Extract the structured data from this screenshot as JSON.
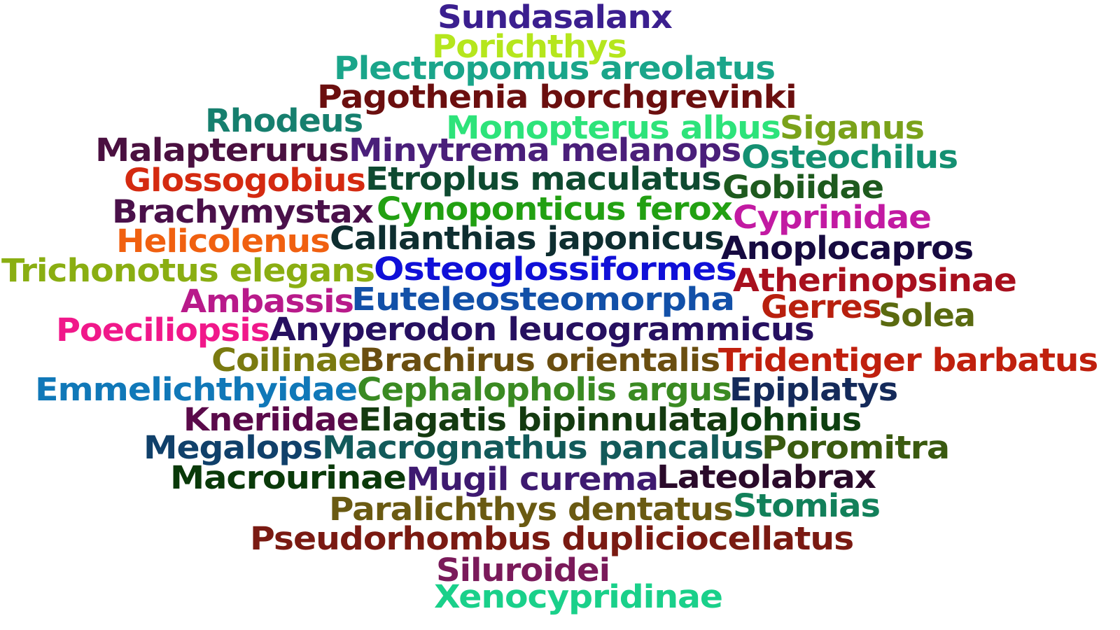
{
  "words": [
    {
      "text": "Sundasalanx",
      "color": "#3b1f8f"
    },
    {
      "text": "Porichthys",
      "color": "#b5e61d"
    },
    {
      "text": "Plectropomus areolatus",
      "color": "#1aa58a"
    },
    {
      "text": "Pagothenia borchgrevinki",
      "color": "#6b0f0f"
    },
    {
      "text": "Rhodeus",
      "color": "#167f6e"
    },
    {
      "text": "Monopterus albus",
      "color": "#2de37a"
    },
    {
      "text": "Siganus",
      "color": "#7aa21a"
    },
    {
      "text": "Malapterurus",
      "color": "#4a1040"
    },
    {
      "text": "Minytrema melanops",
      "color": "#4a1f7a"
    },
    {
      "text": "Osteochilus",
      "color": "#149072"
    },
    {
      "text": "Glossogobius",
      "color": "#d42a10"
    },
    {
      "text": "Etroplus maculatus",
      "color": "#0e4a30"
    },
    {
      "text": "Gobiidae",
      "color": "#1e5a1e"
    },
    {
      "text": "Brachymystax",
      "color": "#4a104a"
    },
    {
      "text": "Cynoponticus ferox",
      "color": "#22a012"
    },
    {
      "text": "Cyprinidae",
      "color": "#c21aa2"
    },
    {
      "text": "Helicolenus",
      "color": "#f06010"
    },
    {
      "text": "Callanthias japonicus",
      "color": "#0e2e30"
    },
    {
      "text": "Anoplocapros",
      "color": "#160a40"
    },
    {
      "text": "Trichonotus elegans",
      "color": "#8aae12"
    },
    {
      "text": "Osteoglossiformes",
      "color": "#1010d8"
    },
    {
      "text": "Atherinopsinae",
      "color": "#a8101e"
    },
    {
      "text": "Ambassis",
      "color": "#b81a8a"
    },
    {
      "text": "Euteleosteomorpha",
      "color": "#1250a8"
    },
    {
      "text": "Gerres",
      "color": "#b8200e"
    },
    {
      "text": "Solea",
      "color": "#5a6a10"
    },
    {
      "text": "Poeciliopsis",
      "color": "#f0188a"
    },
    {
      "text": "Anyperodon leucogrammicus",
      "color": "#261060"
    },
    {
      "text": "Coilinae",
      "color": "#7a7a10"
    },
    {
      "text": "Brachirus orientalis",
      "color": "#6a4e10"
    },
    {
      "text": "Tridentiger barbatus",
      "color": "#c0200e"
    },
    {
      "text": "Emmelichthyidae",
      "color": "#1078b8"
    },
    {
      "text": "Cephalopholis argus",
      "color": "#3a8a22"
    },
    {
      "text": "Epiplatys",
      "color": "#142a5a"
    },
    {
      "text": "Kneriidae",
      "color": "#5a0a4a"
    },
    {
      "text": "Elagatis bipinnulata",
      "color": "#143a10"
    },
    {
      "text": "Johnius",
      "color": "#0e4010"
    },
    {
      "text": "Megalops",
      "color": "#10406a"
    },
    {
      "text": "Macrognathus pancalus",
      "color": "#125a5a"
    },
    {
      "text": "Poromitra",
      "color": "#3a5a10"
    },
    {
      "text": "Macrourinae",
      "color": "#0a3a0a"
    },
    {
      "text": "Mugil curema",
      "color": "#3e1a70"
    },
    {
      "text": "Lateolabrax",
      "color": "#2a0a2a"
    },
    {
      "text": "Paralichthys dentatus",
      "color": "#6a5a12"
    },
    {
      "text": "Stomias",
      "color": "#12805a"
    },
    {
      "text": "Pseudorhombus dupliciocellatus",
      "color": "#7a1a12"
    },
    {
      "text": "Siluroidei",
      "color": "#7a1a5a"
    },
    {
      "text": "Xenocypridinae",
      "color": "#1ad08a"
    }
  ]
}
